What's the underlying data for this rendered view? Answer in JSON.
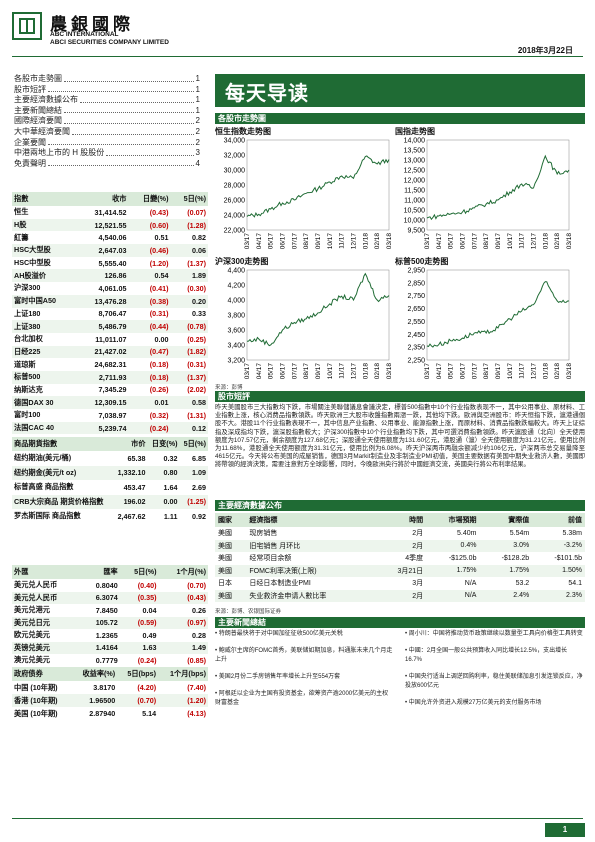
{
  "header": {
    "brand_cn": "農銀國際",
    "brand_en1": "ABC INTERNATIONAL",
    "brand_en2": "ABCI SECURITIES COMPANY LIMITED",
    "date": "2018年3月22日"
  },
  "toc": [
    {
      "label": "各股市走勢圖",
      "page": "1"
    },
    {
      "label": "股市短評",
      "page": "1"
    },
    {
      "label": "主要經濟數據公布",
      "page": "1"
    },
    {
      "label": "主要新聞總結",
      "page": "1"
    },
    {
      "label": "國際經濟要聞",
      "page": "2"
    },
    {
      "label": "大中華經濟要聞",
      "page": "2"
    },
    {
      "label": "企業要聞",
      "page": "2"
    },
    {
      "label": "中港兩地上市的 H 股股份",
      "page": "3"
    },
    {
      "label": "免責聲明",
      "page": "4"
    }
  ],
  "banner": "每天导读",
  "indices": {
    "headers": [
      "指數",
      "收市",
      "日變(%)",
      "5日(%)"
    ],
    "rows": [
      [
        "恒生",
        "31,414.52",
        "(0.43)",
        "(0.07)"
      ],
      [
        "H股",
        "12,521.55",
        "(0.60)",
        "(1.28)"
      ],
      [
        "紅籌",
        "4,540.06",
        "0.51",
        "0.82"
      ],
      [
        "HSC大型股",
        "2,647.03",
        "(0.46)",
        "0.06"
      ],
      [
        "HSC中型股",
        "5,555.40",
        "(1.20)",
        "(1.37)"
      ],
      [
        "AH股溢价",
        "126.86",
        "0.54",
        "1.89"
      ],
      [
        "沪深300",
        "4,061.05",
        "(0.41)",
        "(0.30)"
      ],
      [
        "富时中国A50",
        "13,476.28",
        "(0.38)",
        "0.20"
      ],
      [
        "上证180",
        "8,706.47",
        "(0.31)",
        "0.33"
      ],
      [
        "上证380",
        "5,486.79",
        "(0.44)",
        "(0.78)"
      ],
      [
        "台北加权",
        "11,011.07",
        "0.00",
        "(0.25)"
      ],
      [
        "日经225",
        "21,427.02",
        "(0.47)",
        "(1.82)"
      ],
      [
        "道琼斯",
        "24,682.31",
        "(0.18)",
        "(0.31)"
      ],
      [
        "标普500",
        "2,711.93",
        "(0.18)",
        "(1.37)"
      ],
      [
        "纳斯达克",
        "7,345.29",
        "(0.26)",
        "(2.02)"
      ],
      [
        "德国DAX 30",
        "12,309.15",
        "0.01",
        "0.58"
      ],
      [
        "富时100",
        "7,038.97",
        "(0.32)",
        "(1.31)"
      ],
      [
        "法国CAC 40",
        "5,239.74",
        "(0.24)",
        "0.12"
      ]
    ]
  },
  "commodities": {
    "headers": [
      "商品期貨指數",
      "市价",
      "日变(%)",
      "5日(%)"
    ],
    "rows": [
      [
        "纽约期油(美元/桶)",
        "65.38",
        "0.32",
        "6.85"
      ],
      [
        "纽约期金(美元/t oz)",
        "1,332.10",
        "0.80",
        "1.09"
      ],
      [
        "标普高盛 商品指數",
        "453.47",
        "1.64",
        "2.69"
      ],
      [
        "CRB大宗商品 期货价格指數",
        "196.02",
        "0.00",
        "(1.25)"
      ],
      [
        "罗杰斯国际 商品指數",
        "2,467.62",
        "1.11",
        "0.92"
      ]
    ]
  },
  "fx": {
    "headers": [
      "外匯",
      "匯率",
      "5日(%)",
      "1个月(%)"
    ],
    "rows": [
      [
        "美元兑人民币",
        "0.8040",
        "(0.40)",
        "(0.70)"
      ],
      [
        "美元兑人民币",
        "6.3074",
        "(0.35)",
        "(0.43)"
      ],
      [
        "美元兑港元",
        "7.8450",
        "0.04",
        "0.26"
      ],
      [
        "美元兑日元",
        "105.72",
        "(0.59)",
        "(0.97)"
      ],
      [
        "欧元兑美元",
        "1.2365",
        "0.49",
        "0.28"
      ],
      [
        "英镑兑美元",
        "1.4164",
        "1.63",
        "1.49"
      ],
      [
        "澳元兑美元",
        "0.7779",
        "(0.24)",
        "(0.85)"
      ]
    ]
  },
  "bonds": {
    "headers": [
      "政府债券",
      "收益率(%)",
      "5日(bps)",
      "1个月(bps)"
    ],
    "rows": [
      [
        "中国 (10年期)",
        "3.8170",
        "(4.20)",
        "(7.40)"
      ],
      [
        "香港 (10年期)",
        "1.96500",
        "(0.70)",
        "(1.20)"
      ],
      [
        "美国 (10年期)",
        "2.87940",
        "5.14",
        "(4.13)"
      ]
    ]
  },
  "charts_section_title": "各股市走勢圖",
  "charts": [
    {
      "title": "恒生指数走势图",
      "type": "line",
      "ylim": [
        22000,
        34000
      ],
      "yticks": [
        "34,000",
        "32,000",
        "30,000",
        "28,000",
        "26,000",
        "24,000",
        "22,000"
      ],
      "x": [
        "03/17",
        "04/17",
        "05/17",
        "06/17",
        "07/17",
        "08/17",
        "09/17",
        "10/17",
        "11/17",
        "12/17",
        "01/18",
        "02/18",
        "03/18"
      ],
      "values": [
        23800,
        24100,
        24800,
        25600,
        26000,
        26900,
        27500,
        28400,
        29200,
        28900,
        31800,
        30800,
        31400
      ]
    },
    {
      "title": "国指走势图",
      "type": "line",
      "ylim": [
        9500,
        14000
      ],
      "yticks": [
        "14,000",
        "13,500",
        "13,000",
        "12,500",
        "12,000",
        "11,500",
        "11,000",
        "10,500",
        "10,000",
        "9,500"
      ],
      "x": [
        "03/17",
        "04/17",
        "05/17",
        "06/17",
        "07/17",
        "08/17",
        "09/17",
        "10/17",
        "11/17",
        "12/17",
        "01/18",
        "02/18",
        "03/18"
      ],
      "values": [
        10100,
        10200,
        10300,
        10400,
        10600,
        10800,
        11000,
        11400,
        11800,
        11600,
        13200,
        12300,
        12500
      ]
    },
    {
      "title": "沪深300走势图",
      "type": "line",
      "ylim": [
        3200,
        4400
      ],
      "yticks": [
        "4,400",
        "4,200",
        "4,000",
        "3,800",
        "3,600",
        "3,400",
        "3,200"
      ],
      "x": [
        "03/17",
        "04/17",
        "05/17",
        "06/17",
        "07/17",
        "08/17",
        "09/17",
        "10/17",
        "11/17",
        "12/17",
        "01/18",
        "02/18",
        "03/18"
      ],
      "values": [
        3450,
        3480,
        3400,
        3600,
        3700,
        3750,
        3830,
        3950,
        4050,
        4000,
        4350,
        4000,
        4060
      ]
    },
    {
      "title": "标普500走势图",
      "type": "line",
      "ylim": [
        2250,
        2950
      ],
      "yticks": [
        "2,950",
        "2,850",
        "2,750",
        "2,650",
        "2,550",
        "2,450",
        "2,350",
        "2,250"
      ],
      "x": [
        "03/17",
        "04/17",
        "05/17",
        "06/17",
        "07/17",
        "08/17",
        "09/17",
        "10/17",
        "11/17",
        "12/17",
        "01/18",
        "02/18",
        "03/18"
      ],
      "values": [
        2360,
        2370,
        2400,
        2420,
        2460,
        2460,
        2500,
        2570,
        2630,
        2680,
        2860,
        2710,
        2710
      ]
    }
  ],
  "source1": "来源：彭博",
  "comment_title": "股市短評",
  "comment": "昨天美國股市三大指數均下跌，市場關注美聯儲議息會議決定，標普500指數中10个行业指数表现不一，其中公用事业、原材料、工业指數上涨，核心消费品指數領跌。昨天歐洲三大股市收盤指數兩漲一跌，其他均下跌。歐洲與亞洲股市：昨天恒指下跌，滬港通個股不大。港股11个行业指數表現不一，其中信息产业指數、公用事业、能源指數上涨，而原材料、消費品指數跌幅較大。昨天上证综指及深成指均下跌，滬深股指數較大；沪深300指數中10个行业指數均下跌，其中可選消費指數領跌。昨天滬股通（北向）全天使用额度为107.57亿元，剩余额度为127.68亿元；深股通全天使用额度为131.60亿元，港股通（滬）全天使用额度为31.21亿元，使用比例为11.68%，港股通全天使用额度为31.31亿元，使用比例为6.08%。昨天沪深两市两融余额减少约106亿元，沪深两市总交易量降至4615亿元。今天将公布美国的成屋销售，德国3月Markit制造业及非制造业PMI初值，美国主要数据有美国中期失业救济人數，美國即將帶領的經濟決策，需要注意對方全球影響，同时，今晚歐洲央行將於中國經濟交流，英國央行將公布利率結果。",
  "econ_title": "主要經濟數據公布",
  "econ": {
    "headers": [
      "國家",
      "經濟指標",
      "時間",
      "市場預期",
      "實際值",
      "前值"
    ],
    "rows": [
      [
        "美國",
        "现房销售",
        "2月",
        "5.40m",
        "5.54m",
        "5.38m"
      ],
      [
        "美國",
        "旧宅销售 月环比",
        "2月",
        "0.4%",
        "3.0%",
        "-3.2%"
      ],
      [
        "美國",
        "经常项目余额",
        "4季度",
        "-$125.0b",
        "-$128.2b",
        "-$101.5b"
      ],
      [
        "美國",
        "FOMC利率决策(上限)",
        "3月21日",
        "1.75%",
        "1.75%",
        "1.50%"
      ],
      [
        "日本",
        "日经日本制造业PMI",
        "3月",
        "N/A",
        "53.2",
        "54.1"
      ],
      [
        "美國",
        "失业救济金申请人數比率",
        "2月",
        "N/A",
        "2.4%",
        "2.3%"
      ]
    ]
  },
  "source2": "来源：彭博、农银国际证券",
  "news_title": "主要新聞總結",
  "news_left": [
    "• 特朗普最快将于对中国加征征收500亿美元关税",
    "• 鲍威尔主席的FOMC首秀，美联储如期加息，料通胀未来几个月走上升",
    "• 美国2月份二手房销售年率增长上升至554万套",
    "• 阿根廷以企业为主国有投资基金，欲筹资产逾2000亿美元的主权财富基金"
  ],
  "news_right": [
    "• 周小川：中国将推动货币政策继续以数量型工具向价格型工具转变",
    "• 中國：2月全国一般公共预算收入同比增长12.5%，支出增长16.7%",
    "• 中国央行适当上调逆回购利率，稳住美联储加息引发连锁反应，净投放600亿元",
    "• 中国允许外资进入规模27万亿美元的支付服务市场"
  ],
  "page_number": "1"
}
